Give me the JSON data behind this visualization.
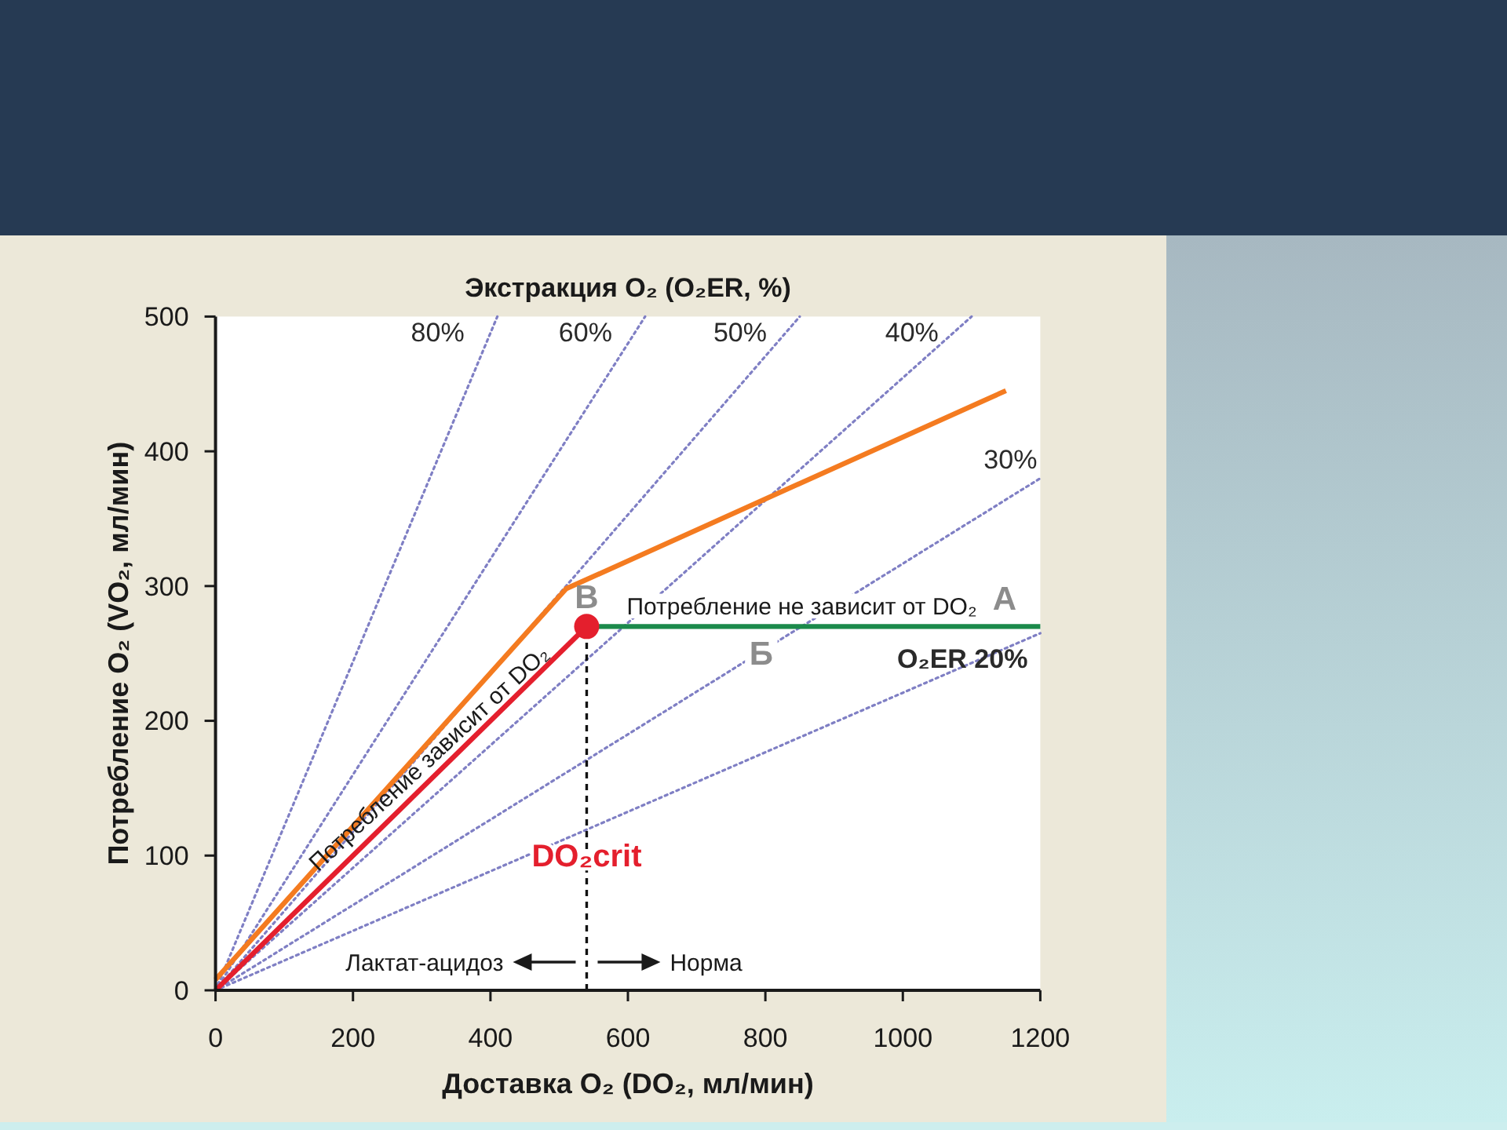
{
  "chart_data": {
    "type": "line",
    "title": "Экстракция O₂ (O₂ER, %)",
    "xlabel": "Доставка O₂ (DO₂, мл/мин)",
    "ylabel": "Потребление O₂ (VO₂, мл/мин)",
    "xlim": [
      0,
      1200
    ],
    "xticks": [
      0,
      200,
      400,
      600,
      800,
      1000,
      1200
    ],
    "ylim": [
      0,
      500
    ],
    "yticks": [
      0,
      100,
      200,
      300,
      400,
      500
    ],
    "marker": "none",
    "line_style": "solid",
    "series": [
      {
        "name": "80%",
        "color": "#7f7fc4",
        "line_style": "dotted",
        "x": [
          0,
          410
        ],
        "values": [
          0,
          500
        ]
      },
      {
        "name": "60%",
        "color": "#7f7fc4",
        "line_style": "dotted",
        "x": [
          0,
          625
        ],
        "values": [
          0,
          500
        ]
      },
      {
        "name": "50%",
        "color": "#7f7fc4",
        "line_style": "dotted",
        "x": [
          0,
          850
        ],
        "values": [
          0,
          500
        ]
      },
      {
        "name": "40%",
        "color": "#7f7fc4",
        "line_style": "dotted",
        "x": [
          0,
          1100
        ],
        "values": [
          0,
          500
        ]
      },
      {
        "name": "30%",
        "color": "#7f7fc4",
        "line_style": "dotted",
        "x": [
          0,
          1200
        ],
        "values": [
          0,
          380
        ]
      },
      {
        "name": "O₂ER 20%",
        "color": "#7f7fc4",
        "line_style": "dotted",
        "x": [
          0,
          1200
        ],
        "values": [
          0,
          265
        ]
      },
      {
        "color": "#f47b20",
        "x": [
          0,
          510,
          1150
        ],
        "values": [
          8,
          298,
          445
        ]
      },
      {
        "color": "#e41f2d",
        "x": [
          0,
          540
        ],
        "values": [
          0,
          270
        ]
      },
      {
        "color": "#1b8a4b",
        "x": [
          540,
          1200
        ],
        "values": [
          270,
          270
        ]
      },
      {
        "color": "#111111",
        "line_style": "dashed",
        "x": [
          540,
          540
        ],
        "values": [
          0,
          270
        ]
      },
      {
        "type": "scatter",
        "color": "#e41f2d",
        "marker": "circle",
        "x": [
          540
        ],
        "values": [
          270
        ]
      }
    ],
    "annotations": [
      "Лактат-ацидоз",
      "Норма",
      {
        "text": "DO₂crit",
        "x": 540,
        "y": 100
      },
      {
        "text": "Потребление зависит от DO₂",
        "x": 310,
        "y": 155
      },
      {
        "text": "Потребление не зависит от DO₂",
        "x": 853,
        "y": 270
      },
      {
        "text": "А",
        "x": 1148,
        "y": 270
      },
      {
        "text": "Б",
        "x": 794,
        "y": 250
      },
      {
        "text": "В",
        "x": 540,
        "y": 270
      }
    ]
  }
}
